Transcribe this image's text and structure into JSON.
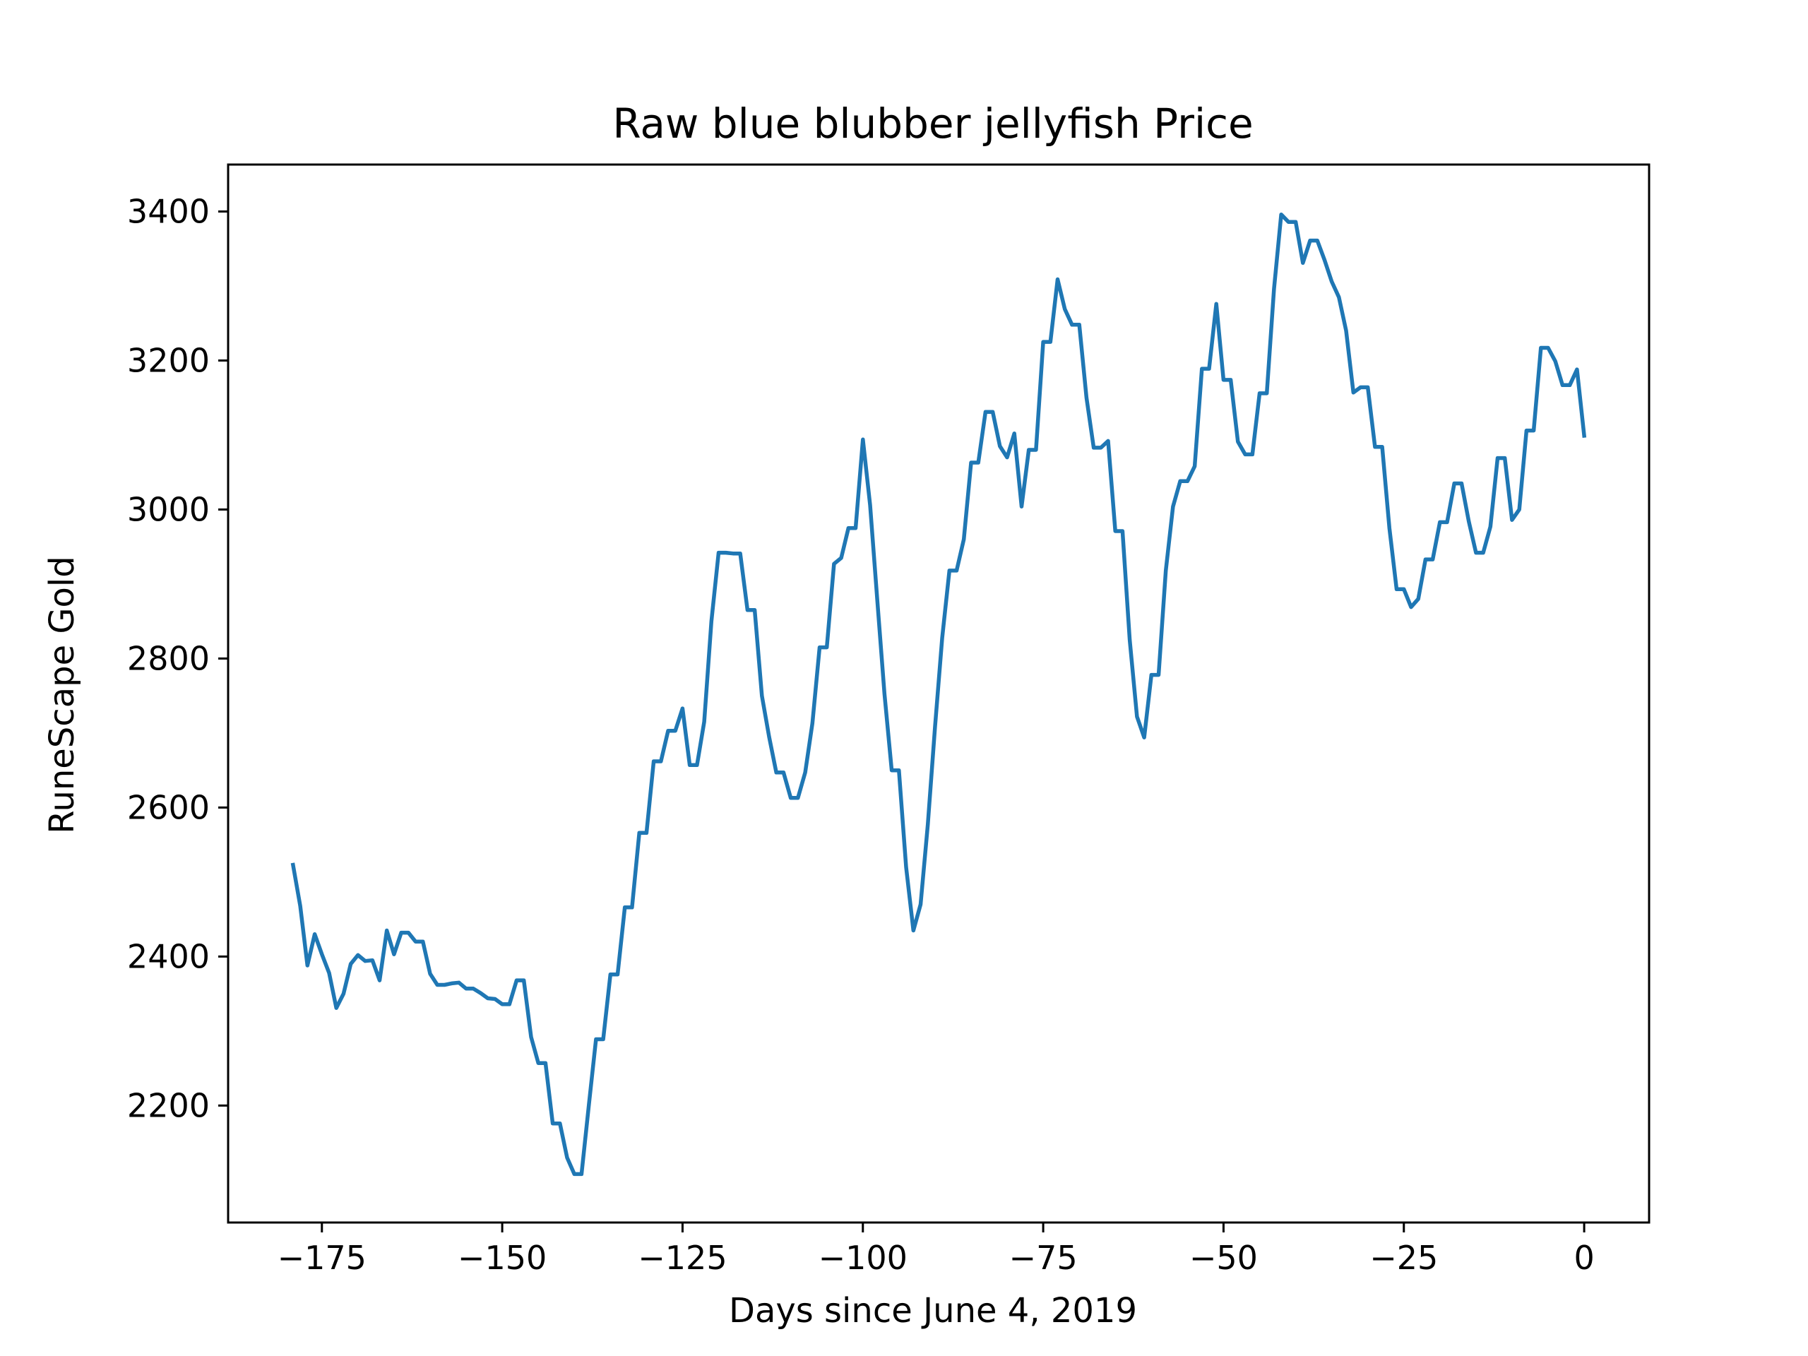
{
  "chart_data": {
    "type": "line",
    "title": "Raw blue blubber jellyfish Price",
    "xlabel": "Days since June 4, 2019",
    "ylabel": "RuneScape Gold",
    "xlim": [
      -188,
      9
    ],
    "ylim": [
      2043,
      3463
    ],
    "x_ticks": [
      -175,
      -150,
      -125,
      -100,
      -75,
      -50,
      -25,
      0
    ],
    "y_ticks": [
      2200,
      2400,
      2600,
      2800,
      3000,
      3200,
      3400
    ],
    "x_tick_labels": [
      "−175",
      "−150",
      "−125",
      "−100",
      "−75",
      "−50",
      "−25",
      "0"
    ],
    "y_tick_labels": [
      "2200",
      "2400",
      "2600",
      "2800",
      "3000",
      "3200",
      "3400"
    ],
    "grid": false,
    "color": "#1f77b4",
    "series": [
      {
        "x": [
          -179,
          -178,
          -177,
          -176,
          -175,
          -174,
          -173,
          -172,
          -171,
          -170,
          -169,
          -168,
          -167,
          -166,
          -165,
          -164,
          -163,
          -162,
          -161,
          -160,
          -159,
          -158,
          -157,
          -156,
          -155,
          -154,
          -153,
          -152,
          -151,
          -150,
          -149,
          -148,
          -147,
          -146,
          -145,
          -144,
          -143,
          -142,
          -141,
          -140,
          -139,
          -138,
          -137,
          -136,
          -135,
          -134,
          -133,
          -132,
          -131,
          -130,
          -129,
          -128,
          -127,
          -126,
          -125,
          -124,
          -123,
          -122,
          -121,
          -120,
          -119,
          -118,
          -117,
          -116,
          -115,
          -114,
          -113,
          -112,
          -111,
          -110,
          -109,
          -108,
          -107,
          -106,
          -105,
          -104,
          -103,
          -102,
          -101,
          -100,
          -99,
          -98,
          -97,
          -96,
          -95,
          -94,
          -93,
          -92,
          -91,
          -90,
          -89,
          -88,
          -87,
          -86,
          -85,
          -84,
          -83,
          -82,
          -81,
          -80,
          -79,
          -78,
          -77,
          -76,
          -75,
          -74,
          -73,
          -72,
          -71,
          -70,
          -69,
          -68,
          -67,
          -66,
          -65,
          -64,
          -63,
          -62,
          -61,
          -60,
          -59,
          -58,
          -57,
          -56,
          -55,
          -54,
          -53,
          -52,
          -51,
          -50,
          -49,
          -48,
          -47,
          -46,
          -45,
          -44,
          -43,
          -42,
          -41,
          -40,
          -39,
          -38,
          -37,
          -36,
          -35,
          -34,
          -33,
          -32,
          -31,
          -30,
          -29,
          -28,
          -27,
          -26,
          -25,
          -24,
          -23,
          -22,
          -21,
          -20,
          -19,
          -18,
          -17,
          -16,
          -15,
          -14,
          -13,
          -12,
          -11,
          -10,
          -9,
          -8,
          -7,
          -6,
          -5,
          -4,
          -3,
          -2,
          -1,
          0
        ],
        "y": [
          2523,
          2468,
          2388,
          2430,
          2403,
          2378,
          2331,
          2350,
          2390,
          2402,
          2394,
          2395,
          2368,
          2435,
          2403,
          2432,
          2432,
          2420,
          2420,
          2377,
          2362,
          2362,
          2364,
          2365,
          2357,
          2357,
          2351,
          2344,
          2343,
          2336,
          2336,
          2368,
          2368,
          2292,
          2257,
          2257,
          2176,
          2176,
          2130,
          2108,
          2108,
          2200,
          2289,
          2289,
          2376,
          2376,
          2466,
          2466,
          2566,
          2566,
          2662,
          2662,
          2703,
          2703,
          2733,
          2657,
          2657,
          2715,
          2850,
          2942,
          2942,
          2941,
          2941,
          2865,
          2865,
          2750,
          2695,
          2647,
          2647,
          2613,
          2613,
          2647,
          2713,
          2815,
          2815,
          2927,
          2935,
          2975,
          2975,
          3094,
          3006,
          2878,
          2752,
          2650,
          2650,
          2520,
          2435,
          2470,
          2577,
          2708,
          2828,
          2918,
          2918,
          2960,
          3063,
          3063,
          3131,
          3131,
          3085,
          3070,
          3102,
          3004,
          3080,
          3080,
          3225,
          3225,
          3309,
          3269,
          3248,
          3248,
          3150,
          3083,
          3083,
          3092,
          2971,
          2971,
          2825,
          2722,
          2694,
          2778,
          2778,
          2918,
          3004,
          3038,
          3038,
          3058,
          3189,
          3189,
          3276,
          3174,
          3174,
          3091,
          3074,
          3074,
          3156,
          3156,
          3296,
          3396,
          3386,
          3386,
          3331,
          3361,
          3361,
          3335,
          3306,
          3285,
          3240,
          3157,
          3164,
          3164,
          3084,
          3084,
          2975,
          2893,
          2893,
          2869,
          2880,
          2933,
          2933,
          2983,
          2983,
          3035,
          3035,
          2984,
          2942,
          2942,
          2977,
          3069,
          3069,
          2986,
          3000,
          3106,
          3106,
          3217,
          3217,
          3199,
          3167,
          3167,
          3188,
          3099
        ]
      }
    ]
  }
}
